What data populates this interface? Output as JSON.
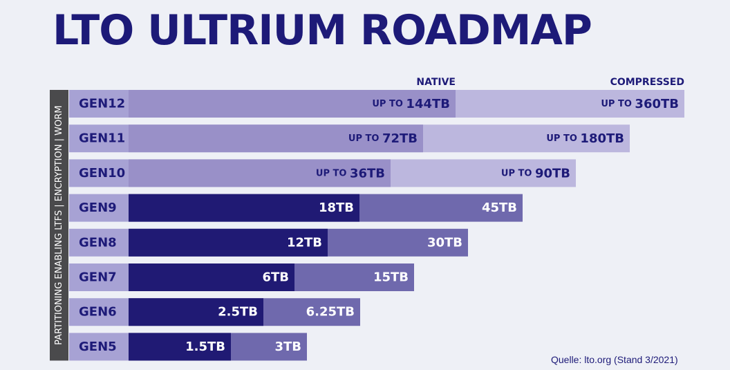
{
  "title": "LTO ULTRIUM ROADMAP",
  "source": "Quelle: lto.org (Stand 3/2021)",
  "chart_data": {
    "type": "bar",
    "orientation": "horizontal",
    "stacking": "overlaid",
    "unit": "TB",
    "side_label": "PARTITIONING ENABLING LTFS | ENCRYPTION | WORM",
    "column_headers": {
      "native": "NATIVE",
      "compressed": "COMPRESSED"
    },
    "legend": "none",
    "grid": false,
    "scale_note": "bar length proportional to capacity; GEN10-GEN12 bars drawn on a compressed scale",
    "colors": {
      "label_bg": "#a7a2d4",
      "native_current": "#201a74",
      "compressed_current": "#6f69ad",
      "native_future": "#9990c8",
      "compressed_future": "#bcb7de",
      "text_dark": "#1d1a78",
      "text_light": "#ffffff"
    },
    "generations": [
      {
        "name": "GEN12",
        "native": 144,
        "compressed": 360,
        "native_label": "UP TO 144TB",
        "compressed_label": "UP TO 360TB",
        "future": true
      },
      {
        "name": "GEN11",
        "native": 72,
        "compressed": 180,
        "native_label": "UP TO 72TB",
        "compressed_label": "UP TO 180TB",
        "future": true
      },
      {
        "name": "GEN10",
        "native": 36,
        "compressed": 90,
        "native_label": "UP TO 36TB",
        "compressed_label": "UP TO 90TB",
        "future": true
      },
      {
        "name": "GEN9",
        "native": 18,
        "compressed": 45,
        "native_label": "18TB",
        "compressed_label": "45TB",
        "future": false
      },
      {
        "name": "GEN8",
        "native": 12,
        "compressed": 30,
        "native_label": "12TB",
        "compressed_label": "30TB",
        "future": false
      },
      {
        "name": "GEN7",
        "native": 6,
        "compressed": 15,
        "native_label": "6TB",
        "compressed_label": "15TB",
        "future": false
      },
      {
        "name": "GEN6",
        "native": 2.5,
        "compressed": 6.25,
        "native_label": "2.5TB",
        "compressed_label": "6.25TB",
        "future": false
      },
      {
        "name": "GEN5",
        "native": 1.5,
        "compressed": 3,
        "native_label": "1.5TB",
        "compressed_label": "3TB",
        "future": false
      }
    ]
  }
}
